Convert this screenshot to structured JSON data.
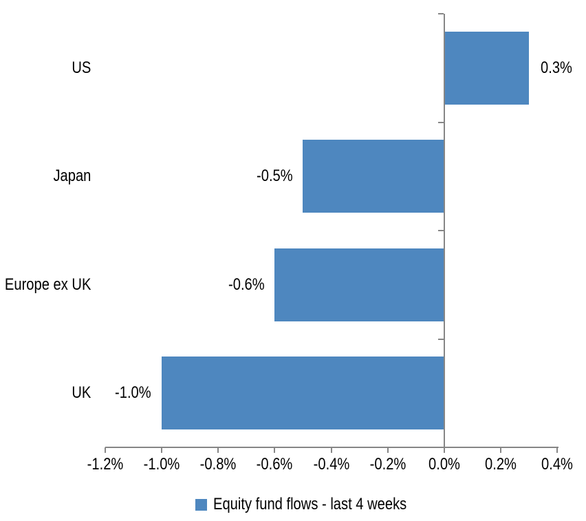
{
  "chart_data": {
    "type": "bar",
    "orientation": "horizontal",
    "title": "",
    "categories": [
      "US",
      "Japan",
      "Europe ex UK",
      "UK"
    ],
    "values": [
      0.3,
      -0.5,
      -0.6,
      -1.0
    ],
    "data_labels": [
      "0.3%",
      "-0.5%",
      "-0.6%",
      "-1.0%"
    ],
    "series": [
      {
        "name": "Equity fund flows - last 4 weeks",
        "values": [
          0.3,
          -0.5,
          -0.6,
          -1.0
        ]
      }
    ],
    "xlabel": "",
    "ylabel": "",
    "xlim": [
      -1.2,
      0.4
    ],
    "x_tick_step": 0.2,
    "x_tick_labels": [
      "-1.2%",
      "-1.0%",
      "-0.8%",
      "-0.6%",
      "-0.4%",
      "-0.2%",
      "0.0%",
      "0.2%",
      "0.4%"
    ],
    "grid": false,
    "legend": {
      "label": "Equity fund flows - last 4 weeks",
      "position": "bottom-center",
      "marker": "square-swatch"
    },
    "colors": {
      "bar_color": "#4e87bf",
      "axis_color": "#868686",
      "text_color": "#000000",
      "background": "#ffffff"
    }
  }
}
